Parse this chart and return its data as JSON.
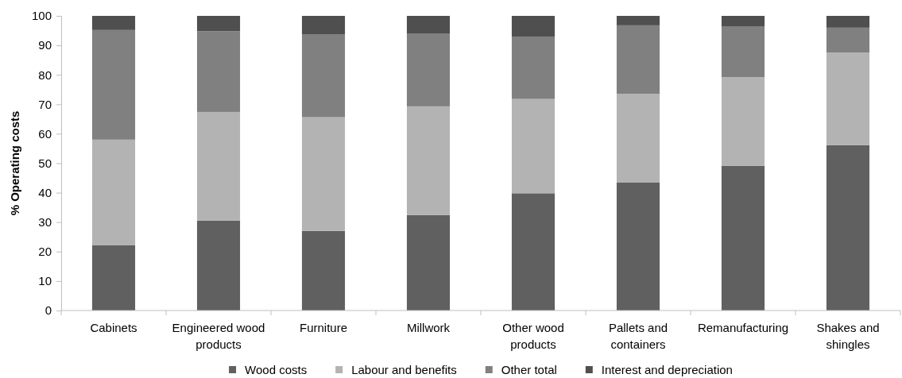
{
  "chart_data": {
    "type": "bar",
    "stacked": true,
    "ylabel": "% Operating costs",
    "categories": [
      "Cabinets",
      "Engineered wood products",
      "Furniture",
      "Millwork",
      "Other wood products",
      "Pallets and containers",
      "Remanufacturing",
      "Shakes and shingles"
    ],
    "series": [
      {
        "name": "Wood costs",
        "color": "#606060",
        "values": [
          22.1,
          30.5,
          27.0,
          32.4,
          39.8,
          43.4,
          49.1,
          56.1
        ]
      },
      {
        "name": "Labour and benefits",
        "color": "#b3b3b3",
        "values": [
          35.9,
          36.9,
          38.6,
          36.9,
          32.0,
          30.1,
          30.1,
          31.5
        ]
      },
      {
        "name": "Other total",
        "color": "#808080",
        "values": [
          37.2,
          27.4,
          28.2,
          24.6,
          21.2,
          23.3,
          17.3,
          8.4
        ]
      },
      {
        "name": "Interest and depreciation",
        "color": "#4f4f4f",
        "values": [
          4.8,
          5.2,
          6.2,
          6.1,
          7.0,
          3.2,
          3.5,
          4.0
        ]
      }
    ],
    "ylim": [
      0,
      100
    ],
    "yticks": [
      0,
      10,
      20,
      30,
      40,
      50,
      60,
      70,
      80,
      90,
      100
    ],
    "legend": "bottom"
  }
}
